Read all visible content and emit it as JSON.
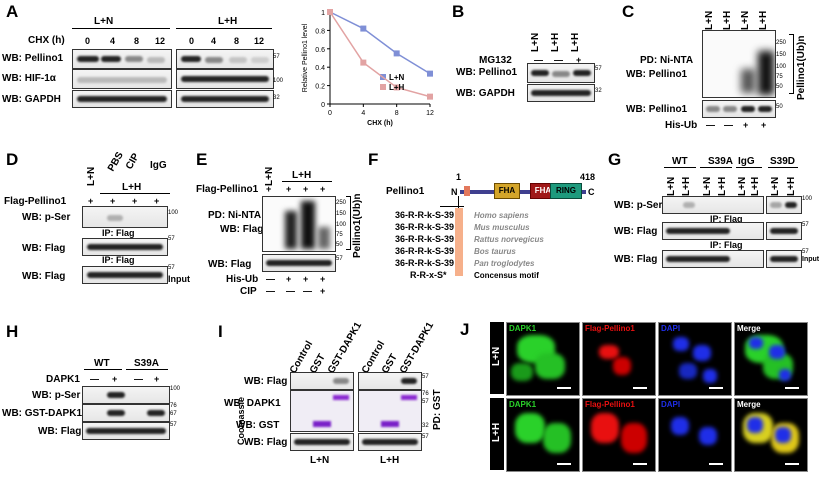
{
  "panels": {
    "A": "A",
    "B": "B",
    "C": "C",
    "D": "D",
    "E": "E",
    "F": "F",
    "G": "G",
    "H": "H",
    "I": "I",
    "J": "J"
  },
  "A": {
    "group1": "L+N",
    "group2": "L+H",
    "cond_label": "CHX (h)",
    "times": [
      "0",
      "4",
      "8",
      "12",
      "0",
      "4",
      "8",
      "12"
    ],
    "rows": [
      "WB: Pellino1",
      "WB: HIF-1α",
      "WB: GAPDH"
    ],
    "markers": [
      "57",
      "100",
      "32"
    ]
  },
  "A_chart": {
    "chart_data": {
      "type": "line",
      "x": [
        0,
        4,
        8,
        12
      ],
      "series": [
        {
          "name": "L+N",
          "values": [
            1.0,
            0.82,
            0.55,
            0.33
          ]
        },
        {
          "name": "L+H",
          "values": [
            1.0,
            0.45,
            0.18,
            0.08
          ]
        }
      ],
      "xlabel": "CHX (h)",
      "ylabel": "Relative Pellino1 level",
      "xticks": [
        "0",
        "4",
        "8",
        "12"
      ],
      "yticks": [
        "0",
        "0.2",
        "0.4",
        "0.6",
        "0.8",
        "1"
      ],
      "xlim": [
        0,
        12
      ],
      "ylim": [
        0,
        1
      ],
      "colors": {
        "L+N": "#7f8fd6",
        "L+H": "#e2a3a3"
      }
    }
  },
  "B": {
    "cols": [
      "L+N",
      "L+H",
      "L+H"
    ],
    "treat": "MG132",
    "treat_vals": [
      "—",
      "—",
      "+"
    ],
    "rows": [
      "WB: Pellino1",
      "WB: GAPDH"
    ],
    "markers": [
      "57",
      "32"
    ]
  },
  "C": {
    "cols": [
      "L+N",
      "L+H",
      "L+N",
      "L+H"
    ],
    "rows": [
      "PD: Ni-NTA",
      "WB: Pellino1",
      "WB: Pellino1"
    ],
    "markers": [
      "250",
      "150",
      "100",
      "75",
      "50",
      "50"
    ],
    "side": "Pellino1(Ub)n",
    "his": "His-Ub",
    "his_vals": [
      "—",
      "—",
      "+",
      "+"
    ]
  },
  "D": {
    "cols": [
      "L+N",
      "PBS",
      "CIP",
      "IgG"
    ],
    "group": "L+H",
    "flag": "Flag-Pellino1",
    "flag_vals": [
      "+",
      "+",
      "+",
      "+"
    ],
    "rows": [
      "WB: p-Ser",
      "WB: Flag",
      "WB: Flag"
    ],
    "ip1": "IP: Flag",
    "ip2": "IP: Flag",
    "input": "Input",
    "markers": [
      "100",
      "57",
      "57"
    ]
  },
  "E": {
    "cols": [
      "L+N"
    ],
    "group": "L+H",
    "flag": "Flag-Pellino1",
    "flag_vals": [
      "+",
      "+",
      "+",
      "+"
    ],
    "rows": [
      "PD: Ni-NTA",
      "WB: Flag",
      "WB: Flag"
    ],
    "markers": [
      "250",
      "150",
      "100",
      "75",
      "50",
      "57"
    ],
    "side": "Pellino1(Ub)n",
    "his": "His-Ub",
    "his_vals": [
      "—",
      "+",
      "+",
      "+"
    ],
    "cip": "CIP",
    "cip_vals": [
      "—",
      "—",
      "—",
      "+"
    ]
  },
  "F": {
    "protein": "Pellino1",
    "n": "N",
    "c": "C",
    "start": "1",
    "end": "418",
    "domains": [
      "FHA",
      "FHA",
      "RING"
    ],
    "seqs": [
      "36-R-R-k-S-39",
      "36-R-R-k-S-39",
      "36-R-R-k-S-39",
      "36-R-R-k-S-39",
      "36-R-R-k-S-39"
    ],
    "species": [
      "Homo sapiens",
      "Mus musculus",
      "Rattus norvegicus",
      "Bos taurus",
      "Pan troglodytes"
    ],
    "motif": "R-R-x-S*",
    "motif_label": "Concensus motif"
  },
  "G": {
    "groups": [
      "WT",
      "S39A",
      "IgG",
      "S39D"
    ],
    "cols": [
      "L+N",
      "L+H",
      "L+N",
      "L+H",
      "L+N",
      "L+H",
      "L+N",
      "L+H"
    ],
    "rows": [
      "WB: p-Ser",
      "WB: Flag",
      "WB: Flag"
    ],
    "ip1": "IP: Flag",
    "ip2": "IP: Flag",
    "input": "Input",
    "markers": [
      "100",
      "57",
      "57"
    ]
  },
  "H": {
    "groups": [
      "WT",
      "S39A"
    ],
    "treat": "DAPK1",
    "treat_vals": [
      "—",
      "+",
      "—",
      "+"
    ],
    "rows": [
      "WB: p-Ser",
      "WB: GST-DAPK1",
      "WB: Flag"
    ],
    "markers": [
      "100",
      "76",
      "67",
      "57"
    ]
  },
  "I": {
    "cols": [
      "Control",
      "GST",
      "GST-DAPK1",
      "Control",
      "GST",
      "GST-DAPK1"
    ],
    "rows": [
      "WB: Flag",
      "WB: DAPK1",
      "WB: GST",
      "WB: Flag"
    ],
    "side_left": "Coomassie",
    "side_right": "PD: GST",
    "bottom": [
      "L+N",
      "L+H"
    ],
    "markers": [
      "57",
      "76",
      "57",
      "32",
      "57"
    ]
  },
  "J": {
    "cols": [
      "DAPK1",
      "Flag-Pellino1",
      "DAPI",
      "Merge"
    ],
    "rows": [
      "L+N",
      "L+H"
    ],
    "colors": {
      "green": "#2ad12a",
      "red": "#e81010",
      "blue": "#1f2ee8"
    }
  }
}
